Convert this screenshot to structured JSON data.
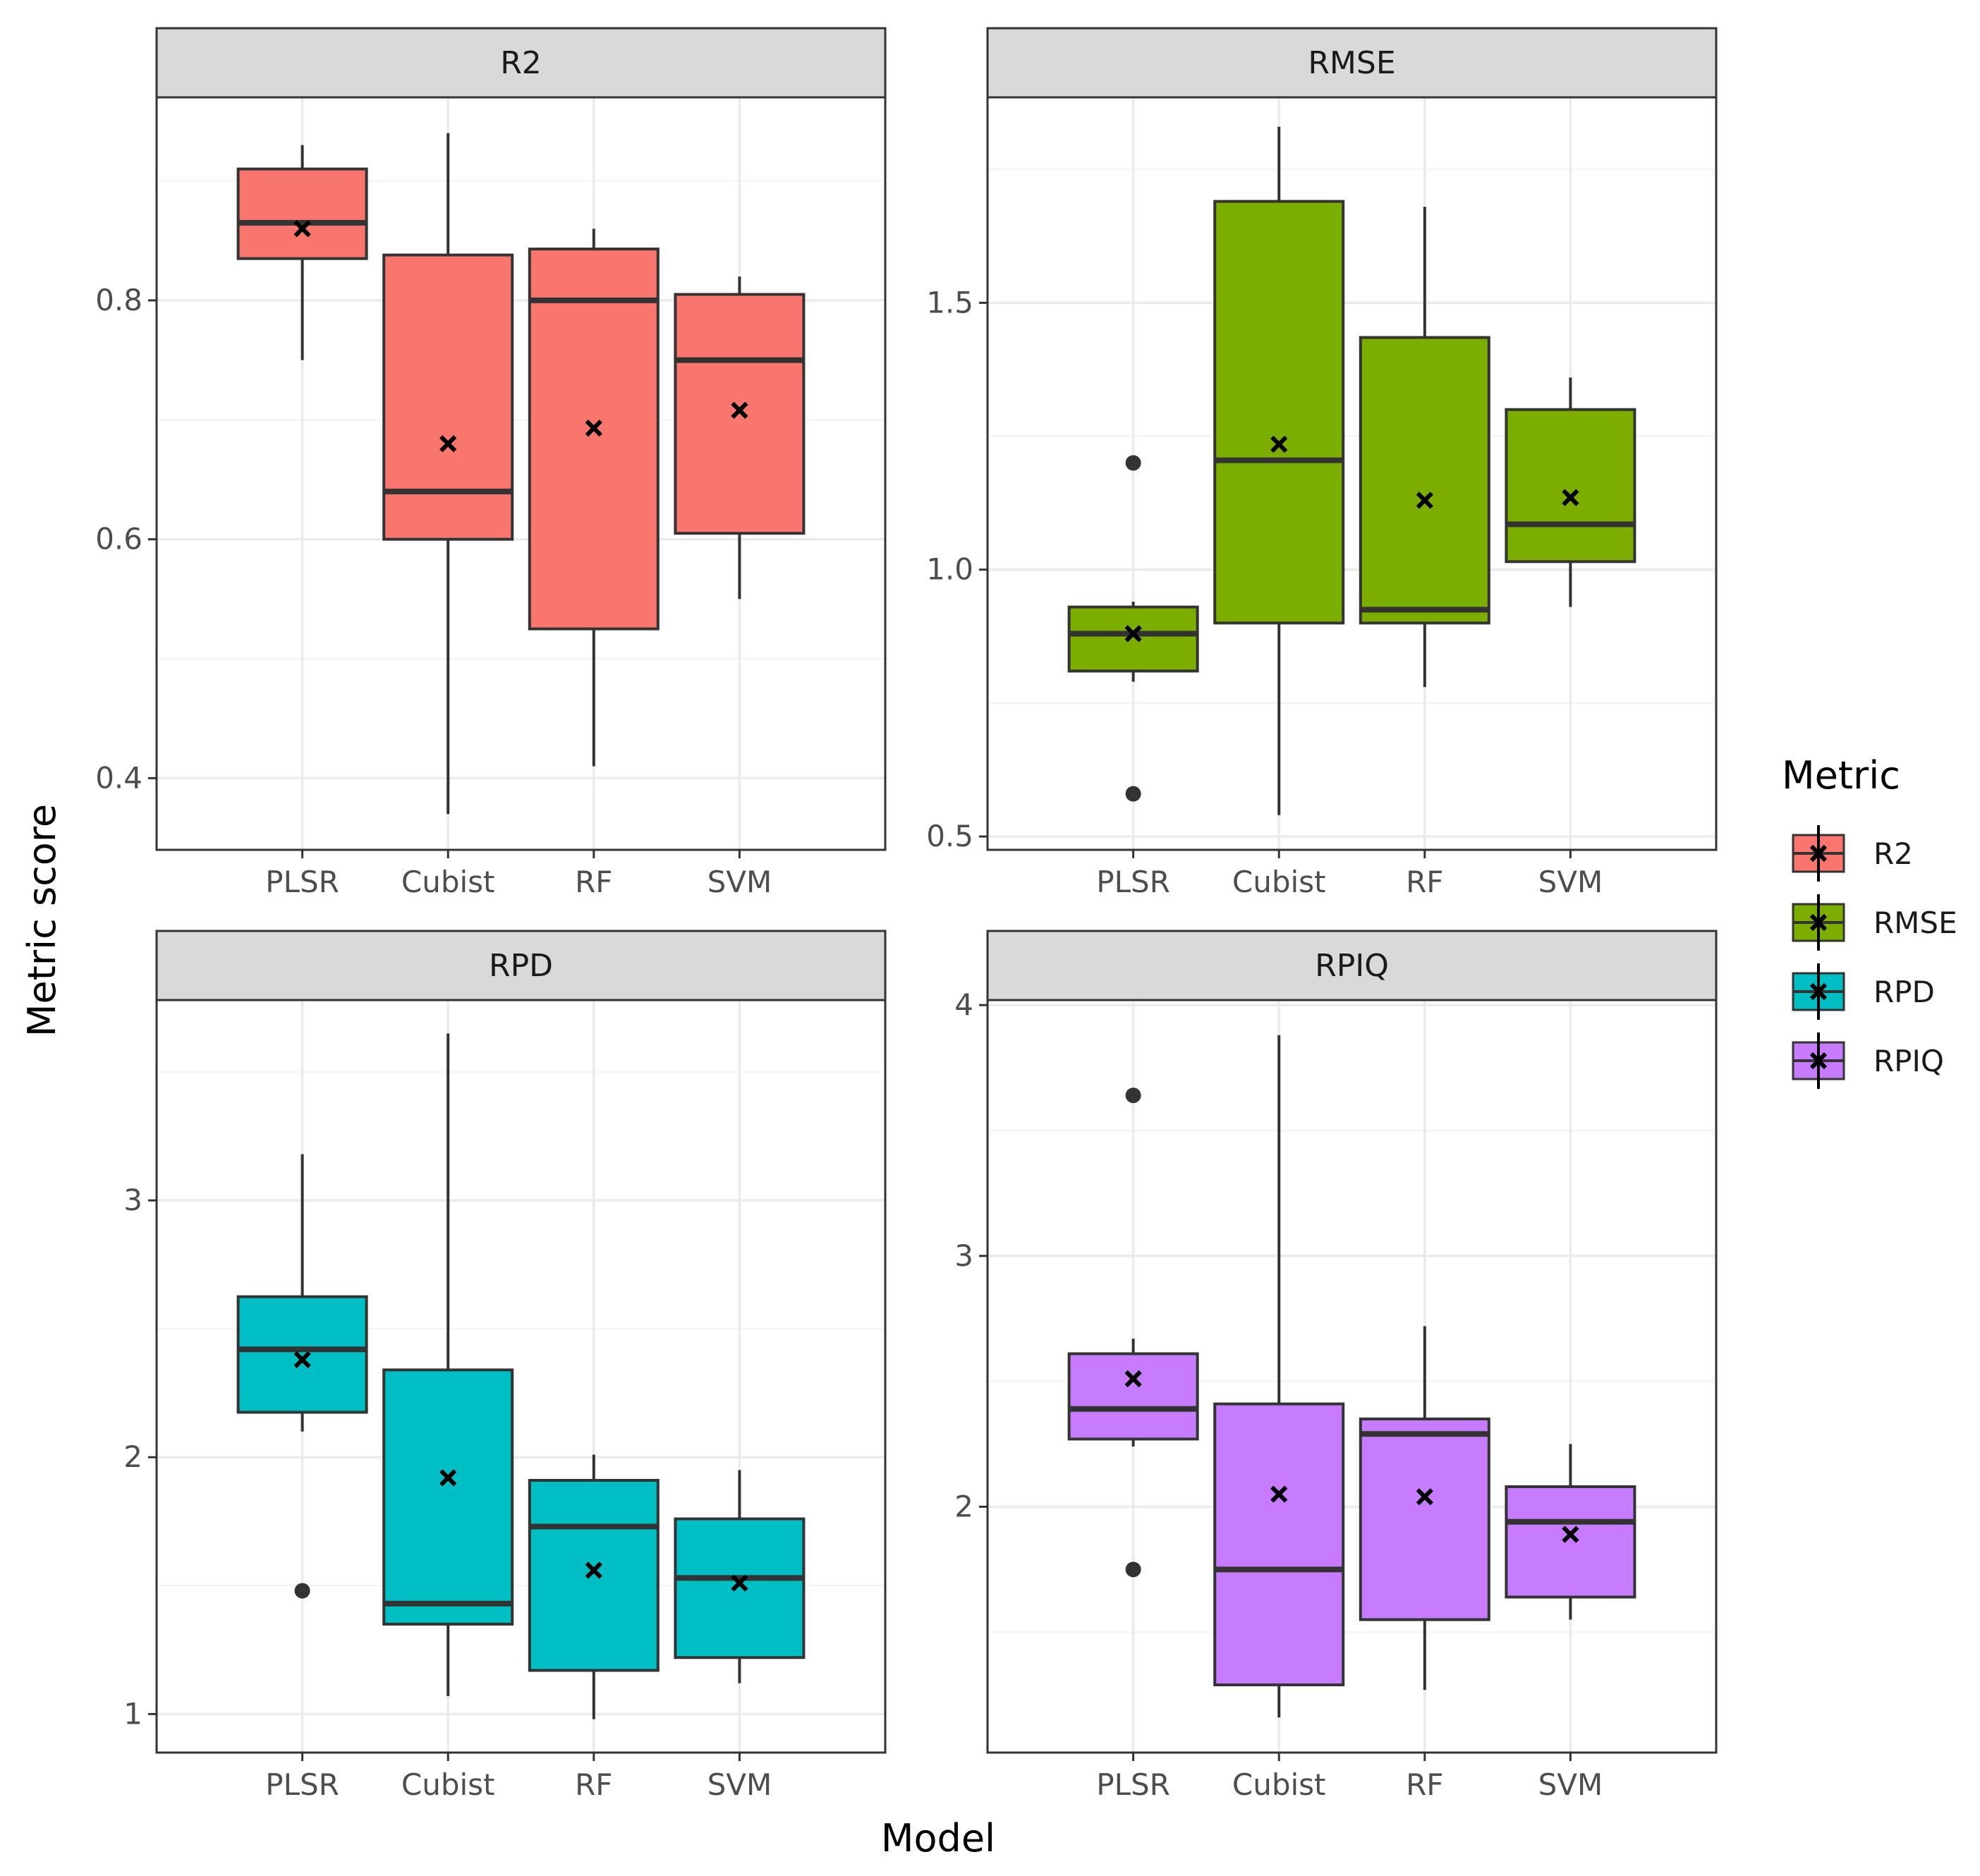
{
  "chart_data": {
    "type": "boxplot",
    "xlabel": "Model",
    "ylabel": "Metric score",
    "categories": [
      "PLSR",
      "Cubist",
      "RF",
      "SVM"
    ],
    "legend": {
      "title": "Metric",
      "position": "right",
      "entries": [
        {
          "label": "R2",
          "color": "#F8766D"
        },
        {
          "label": "RMSE",
          "color": "#7CAE00"
        },
        {
          "label": "RPD",
          "color": "#00BFC4"
        },
        {
          "label": "RPIQ",
          "color": "#C77CFF"
        }
      ]
    },
    "mean_marker": "x",
    "panels": [
      {
        "title": "R2",
        "color": "#F8766D",
        "ylim": [
          0.34,
          0.97
        ],
        "y_ticks": [
          0.4,
          0.6,
          0.8
        ],
        "y_tick_labels": [
          "0.4",
          "0.6",
          "0.8"
        ],
        "y_minor": [
          0.5,
          0.7,
          0.9
        ],
        "boxes": [
          {
            "category": "PLSR",
            "min": 0.75,
            "q1": 0.835,
            "median": 0.865,
            "q3": 0.91,
            "max": 0.93,
            "mean": 0.86,
            "outliers": []
          },
          {
            "category": "Cubist",
            "min": 0.37,
            "q1": 0.6,
            "median": 0.64,
            "q3": 0.838,
            "max": 0.94,
            "mean": 0.68,
            "outliers": []
          },
          {
            "category": "RF",
            "min": 0.41,
            "q1": 0.525,
            "median": 0.8,
            "q3": 0.843,
            "max": 0.86,
            "mean": 0.693,
            "outliers": []
          },
          {
            "category": "SVM",
            "min": 0.55,
            "q1": 0.605,
            "median": 0.75,
            "q3": 0.805,
            "max": 0.82,
            "mean": 0.708,
            "outliers": []
          }
        ]
      },
      {
        "title": "RMSE",
        "color": "#7CAE00",
        "ylim": [
          0.475,
          1.885
        ],
        "y_ticks": [
          0.5,
          1.0,
          1.5
        ],
        "y_tick_labels": [
          "0.5",
          "1.0",
          "1.5"
        ],
        "y_minor": [
          0.75,
          1.25,
          1.75
        ],
        "boxes": [
          {
            "category": "PLSR",
            "min": 0.79,
            "q1": 0.81,
            "median": 0.88,
            "q3": 0.93,
            "max": 0.94,
            "mean": 0.88,
            "outliers": [
              1.2,
              0.58
            ]
          },
          {
            "category": "Cubist",
            "min": 0.54,
            "q1": 0.9,
            "median": 1.205,
            "q3": 1.69,
            "max": 1.83,
            "mean": 1.235,
            "outliers": []
          },
          {
            "category": "RF",
            "min": 0.78,
            "q1": 0.9,
            "median": 0.925,
            "q3": 1.435,
            "max": 1.68,
            "mean": 1.13,
            "outliers": []
          },
          {
            "category": "SVM",
            "min": 0.93,
            "q1": 1.015,
            "median": 1.085,
            "q3": 1.3,
            "max": 1.36,
            "mean": 1.135,
            "outliers": []
          }
        ]
      },
      {
        "title": "RPD",
        "color": "#00BFC4",
        "ylim": [
          0.85,
          3.78
        ],
        "y_ticks": [
          1,
          2,
          3
        ],
        "y_tick_labels": [
          "1",
          "2",
          "3"
        ],
        "y_minor": [
          1.5,
          2.5,
          3.5
        ],
        "boxes": [
          {
            "category": "PLSR",
            "min": 2.1,
            "q1": 2.175,
            "median": 2.42,
            "q3": 2.625,
            "max": 3.18,
            "mean": 2.38,
            "outliers": [
              1.48
            ]
          },
          {
            "category": "Cubist",
            "min": 1.07,
            "q1": 1.35,
            "median": 1.43,
            "q3": 2.34,
            "max": 3.65,
            "mean": 1.92,
            "outliers": []
          },
          {
            "category": "RF",
            "min": 0.98,
            "q1": 1.17,
            "median": 1.73,
            "q3": 1.91,
            "max": 2.01,
            "mean": 1.56,
            "outliers": []
          },
          {
            "category": "SVM",
            "min": 1.12,
            "q1": 1.22,
            "median": 1.53,
            "q3": 1.76,
            "max": 1.95,
            "mean": 1.51,
            "outliers": []
          }
        ]
      },
      {
        "title": "RPIQ",
        "color": "#C77CFF",
        "ylim": [
          1.02,
          4.02
        ],
        "y_ticks": [
          2,
          3,
          4
        ],
        "y_tick_labels": [
          "2",
          "3",
          "4"
        ],
        "y_minor": [
          1.5,
          2.5,
          3.5
        ],
        "boxes": [
          {
            "category": "PLSR",
            "min": 2.24,
            "q1": 2.27,
            "median": 2.39,
            "q3": 2.61,
            "max": 2.67,
            "mean": 2.51,
            "outliers": [
              3.64,
              1.75
            ]
          },
          {
            "category": "Cubist",
            "min": 1.16,
            "q1": 1.29,
            "median": 1.75,
            "q3": 2.41,
            "max": 3.88,
            "mean": 2.05,
            "outliers": []
          },
          {
            "category": "RF",
            "min": 1.27,
            "q1": 1.55,
            "median": 2.29,
            "q3": 2.35,
            "max": 2.72,
            "mean": 2.04,
            "outliers": []
          },
          {
            "category": "SVM",
            "min": 1.55,
            "q1": 1.64,
            "median": 1.94,
            "q3": 2.08,
            "max": 2.25,
            "mean": 1.89,
            "outliers": []
          }
        ]
      }
    ]
  }
}
